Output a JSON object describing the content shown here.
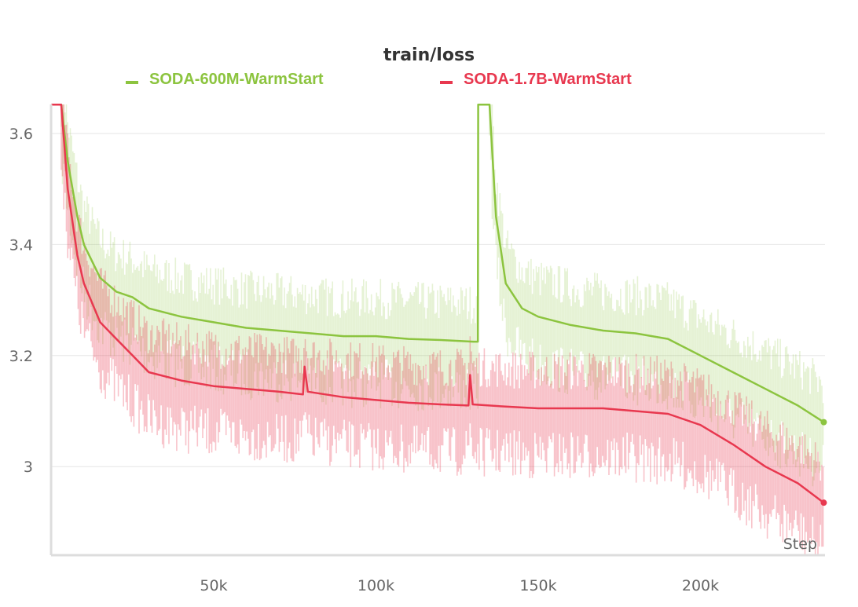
{
  "chart_data": {
    "type": "line",
    "title": "train/loss",
    "xlabel": "Step",
    "ylabel": "",
    "xlim": [
      0,
      238000
    ],
    "ylim": [
      2.84,
      3.652
    ],
    "grid": true,
    "legend_position": "top",
    "x_ticks": [
      {
        "value": 50000,
        "label": "50k"
      },
      {
        "value": 100000,
        "label": "100k"
      },
      {
        "value": 150000,
        "label": "150k"
      },
      {
        "value": 200000,
        "label": "200k"
      }
    ],
    "y_ticks": [
      {
        "value": 3.6,
        "label": "3.6"
      },
      {
        "value": 3.4,
        "label": "3.4"
      },
      {
        "value": 3.2,
        "label": "3.2"
      },
      {
        "value": 3.0,
        "label": "3"
      }
    ],
    "series": [
      {
        "name": "SODA-600M-WarmStart",
        "color": "#8cc43f",
        "x": [
          0,
          3000,
          5000,
          8000,
          10000,
          15000,
          20000,
          25000,
          30000,
          40000,
          50000,
          60000,
          70000,
          80000,
          90000,
          100000,
          110000,
          120000,
          130000,
          131400,
          131500,
          135000,
          137000,
          140000,
          145000,
          150000,
          160000,
          170000,
          180000,
          190000,
          200000,
          210000,
          220000,
          230000,
          238000
        ],
        "y": [
          3.652,
          3.652,
          3.55,
          3.45,
          3.4,
          3.34,
          3.315,
          3.305,
          3.285,
          3.27,
          3.26,
          3.25,
          3.245,
          3.24,
          3.235,
          3.235,
          3.23,
          3.228,
          3.225,
          3.225,
          3.652,
          3.652,
          3.45,
          3.33,
          3.285,
          3.27,
          3.255,
          3.245,
          3.24,
          3.23,
          3.2,
          3.17,
          3.14,
          3.11,
          3.08
        ]
      },
      {
        "name": "SODA-1.7B-WarmStart",
        "color": "#e8384f",
        "x": [
          0,
          3000,
          5000,
          8000,
          10000,
          15000,
          20000,
          25000,
          30000,
          40000,
          50000,
          60000,
          70000,
          77500,
          78000,
          79000,
          90000,
          100000,
          110000,
          120000,
          128500,
          129000,
          129800,
          140000,
          150000,
          170000,
          190000,
          200000,
          210000,
          220000,
          230000,
          238000
        ],
        "y": [
          3.652,
          3.652,
          3.5,
          3.38,
          3.33,
          3.26,
          3.23,
          3.2,
          3.17,
          3.155,
          3.145,
          3.14,
          3.135,
          3.13,
          3.18,
          3.135,
          3.125,
          3.12,
          3.115,
          3.112,
          3.11,
          3.165,
          3.112,
          3.108,
          3.105,
          3.105,
          3.095,
          3.075,
          3.04,
          3.0,
          2.97,
          2.935
        ]
      }
    ]
  }
}
